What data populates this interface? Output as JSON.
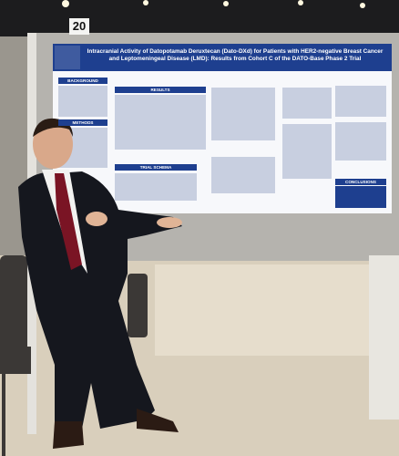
{
  "board_number": "20",
  "poster": {
    "title": "Intracranial Activity of Datopotamab Deruxtecan (Dato-DXd) for Patients with HER2-negative Breast Cancer and Leptomeningeal Disease (LMD): Results from Cohort C of the DATO-Base Phase 2 Trial",
    "sections": [
      "BACKGROUND",
      "METHODS",
      "TRIAL SCHEMA",
      "RESULTS",
      "CONCLUSIONS"
    ]
  }
}
